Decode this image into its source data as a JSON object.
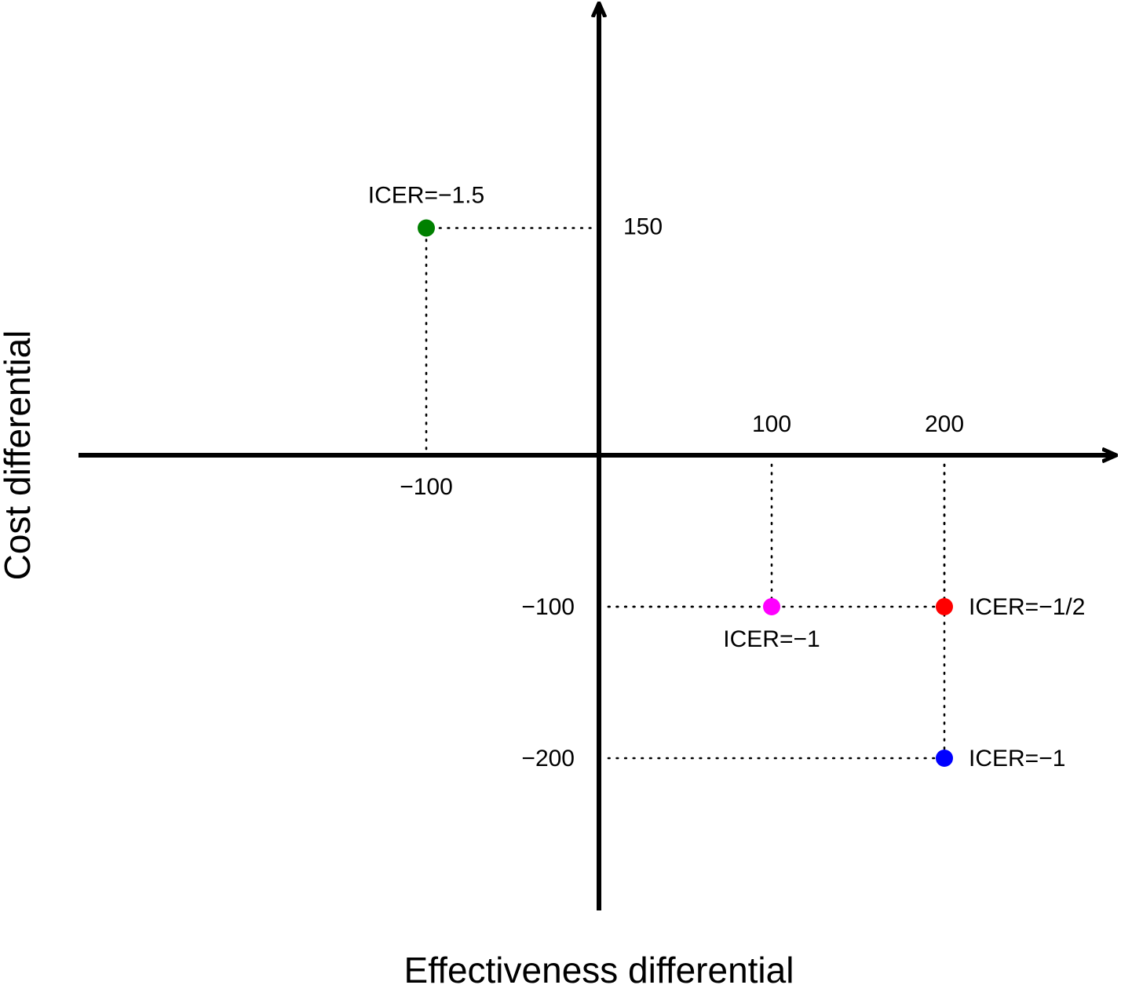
{
  "chart_data": {
    "type": "scatter",
    "xlabel": "Effectiveness differential",
    "ylabel": "Cost differential",
    "xlim": [
      -303,
      302
    ],
    "ylim": [
      -300,
      300
    ],
    "grid": false,
    "points": [
      {
        "x": -100,
        "y": 150,
        "color": "#008000",
        "label": "ICER=−1.5",
        "x_tick": "−100",
        "y_tick": "150"
      },
      {
        "x": 100,
        "y": -100,
        "color": "#ff00ff",
        "label": "ICER=−1",
        "x_tick": "100",
        "y_tick": "−100"
      },
      {
        "x": 200,
        "y": -100,
        "color": "#ff0000",
        "label": "ICER=−1/2",
        "x_tick": "200",
        "y_tick": ""
      },
      {
        "x": 200,
        "y": -200,
        "color": "#0000ff",
        "label": "ICER=−1",
        "x_tick": "",
        "y_tick": "−200"
      }
    ]
  }
}
